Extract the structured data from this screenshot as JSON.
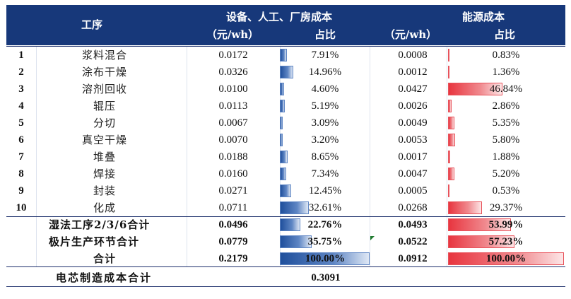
{
  "header": {
    "process": "工序",
    "group1": "设备、人工、厂房成本",
    "group2": "能源成本",
    "unit1": "（元/wh）",
    "ratio1": "占比",
    "unit2": "（元/wh）",
    "ratio2": "占比"
  },
  "rows": [
    {
      "no": "1",
      "name": "浆料混合",
      "cost1": "0.0172",
      "pct1": "7.91%",
      "cost2": "0.0008",
      "pct2": "0.83%",
      "f1": 0.0791,
      "f2": 0.0083
    },
    {
      "no": "2",
      "name": "涂布干燥",
      "cost1": "0.0326",
      "pct1": "14.96%",
      "cost2": "0.0012",
      "pct2": "1.36%",
      "f1": 0.1496,
      "f2": 0.0136
    },
    {
      "no": "3",
      "name": "溶剂回收",
      "cost1": "0.0100",
      "pct1": "4.60%",
      "cost2": "0.0427",
      "pct2": "46.84%",
      "f1": 0.046,
      "f2": 0.4684
    },
    {
      "no": "4",
      "name": "辊压",
      "cost1": "0.0113",
      "pct1": "5.19%",
      "cost2": "0.0026",
      "pct2": "2.86%",
      "f1": 0.0519,
      "f2": 0.0286
    },
    {
      "no": "5",
      "name": "分切",
      "cost1": "0.0067",
      "pct1": "3.09%",
      "cost2": "0.0049",
      "pct2": "5.35%",
      "f1": 0.0309,
      "f2": 0.0535
    },
    {
      "no": "6",
      "name": "真空干燥",
      "cost1": "0.0070",
      "pct1": "3.20%",
      "cost2": "0.0053",
      "pct2": "5.80%",
      "f1": 0.032,
      "f2": 0.058
    },
    {
      "no": "7",
      "name": "堆叠",
      "cost1": "0.0188",
      "pct1": "8.65%",
      "cost2": "0.0017",
      "pct2": "1.88%",
      "f1": 0.0865,
      "f2": 0.0188
    },
    {
      "no": "8",
      "name": "焊接",
      "cost1": "0.0160",
      "pct1": "7.34%",
      "cost2": "0.0047",
      "pct2": "5.20%",
      "f1": 0.0734,
      "f2": 0.052
    },
    {
      "no": "9",
      "name": "封装",
      "cost1": "0.0271",
      "pct1": "12.45%",
      "cost2": "0.0005",
      "pct2": "0.53%",
      "f1": 0.1245,
      "f2": 0.0053
    },
    {
      "no": "10",
      "name": "化成",
      "cost1": "0.0711",
      "pct1": "32.61%",
      "cost2": "0.0268",
      "pct2": "29.37%",
      "f1": 0.3261,
      "f2": 0.2937
    }
  ],
  "subtotals": [
    {
      "name": "湿法工序2/3/6合计",
      "cost1": "0.0496",
      "pct1": "22.76%",
      "cost2": "0.0493",
      "pct2": "53.99%",
      "f1": 0.2276,
      "f2": 0.5399
    },
    {
      "name": "极片生产环节合计",
      "cost1": "0.0779",
      "pct1": "35.75%",
      "cost2": "0.0522",
      "pct2": "57.23%",
      "f1": 0.3575,
      "f2": 0.5723
    },
    {
      "name": "合计",
      "cost1": "0.2179",
      "pct1": "100.00%",
      "cost2": "0.0912",
      "pct2": "100.00%",
      "f1": 1.0,
      "f2": 1.0
    }
  ],
  "total": {
    "label": "电芯制造成本合计",
    "value": "0.3091"
  },
  "colors": {
    "header_bg": "#17387a",
    "bar_blue": "#1f4f9c",
    "bar_red": "#e8353f"
  }
}
